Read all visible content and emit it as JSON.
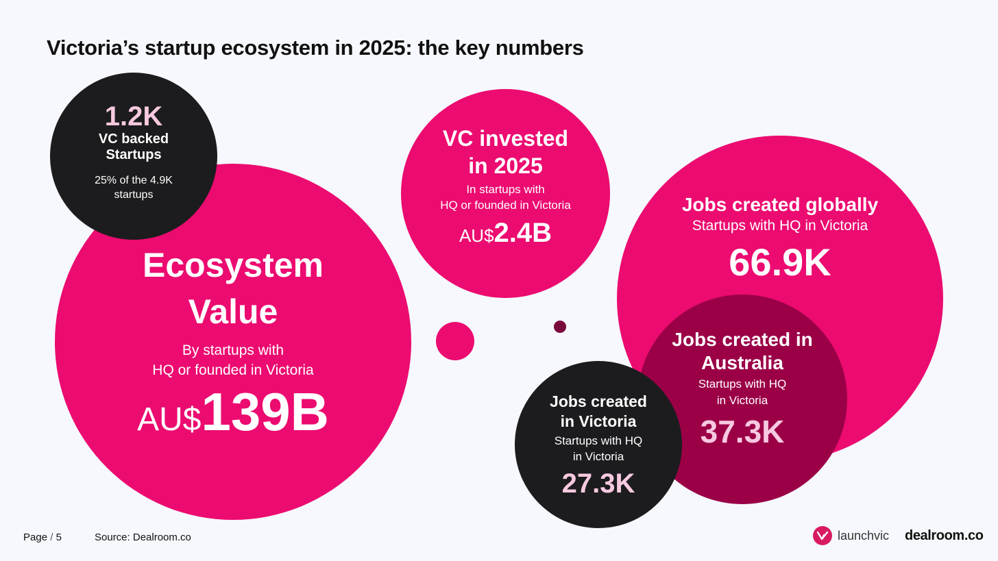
{
  "title": "Victoria’s startup ecosystem in 2025: the key numbers",
  "ecosystem": {
    "heading_line1": "Ecosystem",
    "heading_line2": "Value",
    "sub_line1": "By startups with",
    "sub_line2": "HQ or founded in Victoria",
    "currency": "AU$",
    "value": "139B"
  },
  "vc_backed": {
    "value": "1.2K",
    "heading_line1": "VC backed",
    "heading_line2": "Startups",
    "sub_line1": "25% of the 4.9K",
    "sub_line2": "startups"
  },
  "vc_invested": {
    "heading_line1": "VC invested",
    "heading_line2": "in 2025",
    "sub_line1": "In startups with",
    "sub_line2": "HQ or founded in Victoria",
    "currency": "AU$",
    "value": "2.4B"
  },
  "jobs_global": {
    "heading": "Jobs created globally",
    "sub": "Startups with HQ in Victoria",
    "value": "66.9K"
  },
  "jobs_australia": {
    "heading_line1": "Jobs created in",
    "heading_line2": "Australia",
    "sub_line1": "Startups with HQ",
    "sub_line2": "in Victoria",
    "value": "37.3K"
  },
  "jobs_victoria": {
    "heading_line1": "Jobs created",
    "heading_line2": "in Victoria",
    "sub_line1": "Startups with HQ",
    "sub_line2": "in Victoria",
    "value": "27.3K"
  },
  "footer": {
    "page_label": "Page",
    "page_sep": " / ",
    "page_number": "5",
    "source": "Source:  Dealroom.co",
    "logo_launchvic": "launchvic",
    "logo_dealroom": "dealroom.co"
  },
  "colors": {
    "pink": "#ec0b70",
    "dark": "#1c1c1e",
    "maroon": "#9b0047",
    "light_pink": "#f7c9e0"
  }
}
